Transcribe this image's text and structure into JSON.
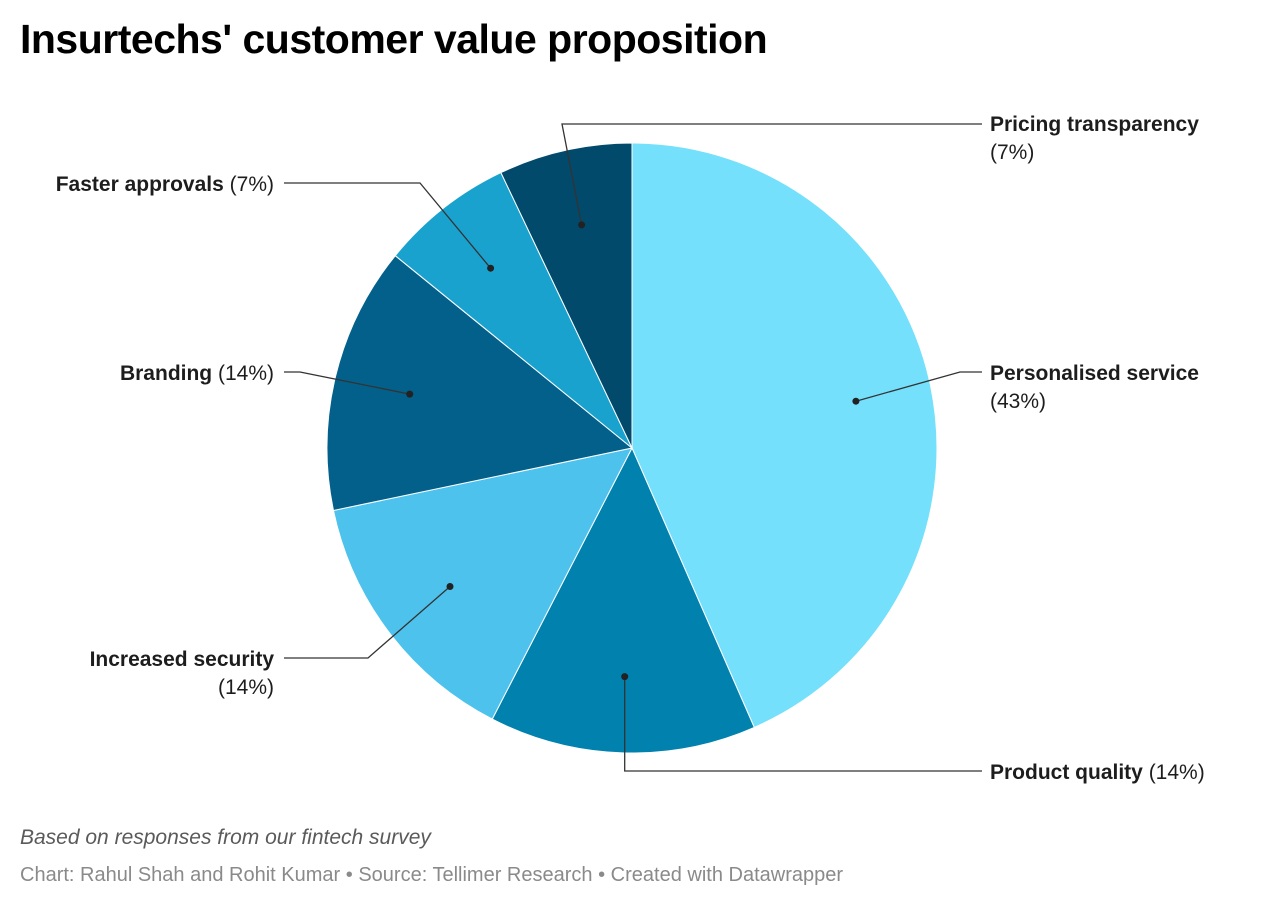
{
  "title": "Insurtechs' customer value proposition",
  "notes": "Based on responses from our fintech survey",
  "footer": {
    "byline_label": "Chart:",
    "byline": "Rahul Shah and Rohit Kumar",
    "source_label": "Source:",
    "source": "Tellimer Research",
    "credit": "Created with Datawrapper",
    "separator": "•"
  },
  "chart_data": {
    "type": "pie",
    "title": "Insurtechs' customer value proposition",
    "unit": "%",
    "slices": [
      {
        "label": "Personalised service",
        "value": 43,
        "display": "(43%)",
        "color": "#74e0fc"
      },
      {
        "label": "Product quality",
        "value": 14,
        "display": "(14%)",
        "color": "#0181ae"
      },
      {
        "label": "Increased security",
        "value": 14,
        "display": "(14%)",
        "color": "#4dc2ed"
      },
      {
        "label": "Branding",
        "value": 14,
        "display": "(14%)",
        "color": "#03608a"
      },
      {
        "label": "Faster approvals",
        "value": 7,
        "display": "(7%)",
        "color": "#1aa2cf"
      },
      {
        "label": "Pricing transparency",
        "value": 7,
        "display": "(7%)",
        "color": "#024a6c"
      }
    ]
  }
}
